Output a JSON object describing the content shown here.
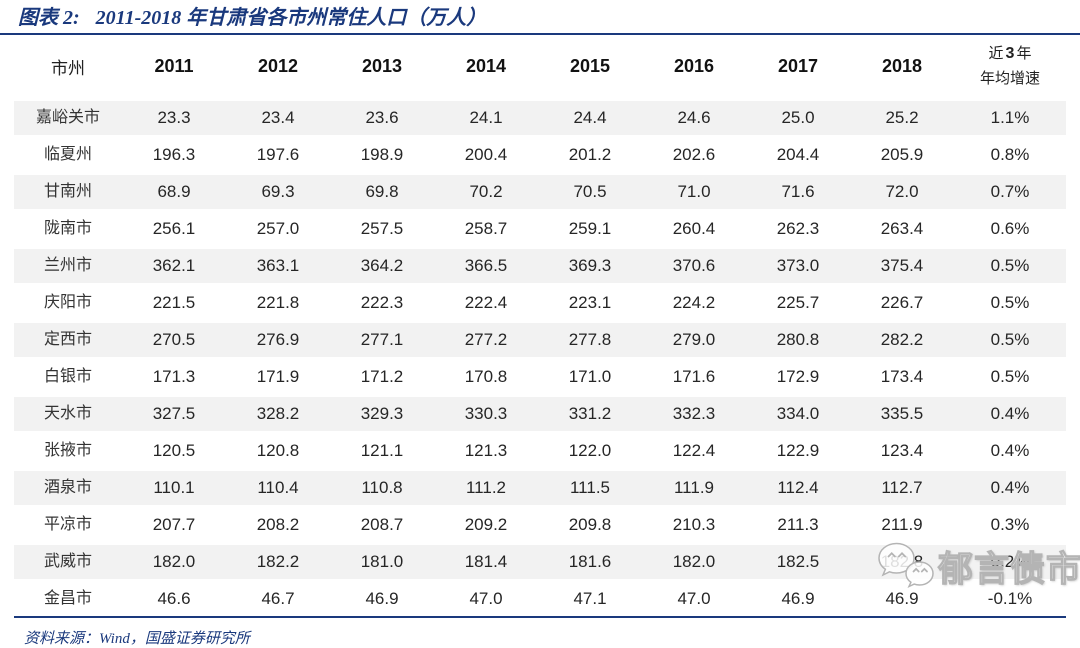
{
  "header": {
    "figure_label": "图表 2:",
    "title": "2011-2018 年甘肃省各市州常住人口（万人）"
  },
  "table": {
    "growth_header": {
      "l1a": "近",
      "l1b": "3",
      "l1c": "年",
      "l2": "年均增速"
    }
  },
  "chart_data": {
    "type": "table",
    "title": "图表 2: 2011-2018 年甘肃省各市州常住人口（万人）",
    "unit": "万人",
    "columns": [
      "市州",
      "2011",
      "2012",
      "2013",
      "2014",
      "2015",
      "2016",
      "2017",
      "2018",
      "近3年年均增速"
    ],
    "rows": [
      [
        "嘉峪关市",
        "23.3",
        "23.4",
        "23.6",
        "24.1",
        "24.4",
        "24.6",
        "25.0",
        "25.2",
        "1.1%"
      ],
      [
        "临夏州",
        "196.3",
        "197.6",
        "198.9",
        "200.4",
        "201.2",
        "202.6",
        "204.4",
        "205.9",
        "0.8%"
      ],
      [
        "甘南州",
        "68.9",
        "69.3",
        "69.8",
        "70.2",
        "70.5",
        "71.0",
        "71.6",
        "72.0",
        "0.7%"
      ],
      [
        "陇南市",
        "256.1",
        "257.0",
        "257.5",
        "258.7",
        "259.1",
        "260.4",
        "262.3",
        "263.4",
        "0.6%"
      ],
      [
        "兰州市",
        "362.1",
        "363.1",
        "364.2",
        "366.5",
        "369.3",
        "370.6",
        "373.0",
        "375.4",
        "0.5%"
      ],
      [
        "庆阳市",
        "221.5",
        "221.8",
        "222.3",
        "222.4",
        "223.1",
        "224.2",
        "225.7",
        "226.7",
        "0.5%"
      ],
      [
        "定西市",
        "270.5",
        "276.9",
        "277.1",
        "277.2",
        "277.8",
        "279.0",
        "280.8",
        "282.2",
        "0.5%"
      ],
      [
        "白银市",
        "171.3",
        "171.9",
        "171.2",
        "170.8",
        "171.0",
        "171.6",
        "172.9",
        "173.4",
        "0.5%"
      ],
      [
        "天水市",
        "327.5",
        "328.2",
        "329.3",
        "330.3",
        "331.2",
        "332.3",
        "334.0",
        "335.5",
        "0.4%"
      ],
      [
        "张掖市",
        "120.5",
        "120.8",
        "121.1",
        "121.3",
        "122.0",
        "122.4",
        "122.9",
        "123.4",
        "0.4%"
      ],
      [
        "酒泉市",
        "110.1",
        "110.4",
        "110.8",
        "111.2",
        "111.5",
        "111.9",
        "112.4",
        "112.7",
        "0.4%"
      ],
      [
        "平凉市",
        "207.7",
        "208.2",
        "208.7",
        "209.2",
        "209.8",
        "210.3",
        "211.3",
        "211.9",
        "0.3%"
      ],
      [
        "武威市",
        "182.0",
        "182.2",
        "181.0",
        "181.4",
        "181.6",
        "182.0",
        "182.5",
        "182.8",
        "0.2%"
      ],
      [
        "金昌市",
        "46.6",
        "46.7",
        "46.9",
        "47.0",
        "47.1",
        "47.0",
        "46.9",
        "46.9",
        "-0.1%"
      ]
    ]
  },
  "source": "资料来源：Wind，国盛证券研究所",
  "watermark": {
    "icon": "wechat-bubbles-icon",
    "text": "郁言债市"
  },
  "colors": {
    "accent": "#1A397D",
    "stripe": "#F2F2F2",
    "text": "#262626"
  }
}
